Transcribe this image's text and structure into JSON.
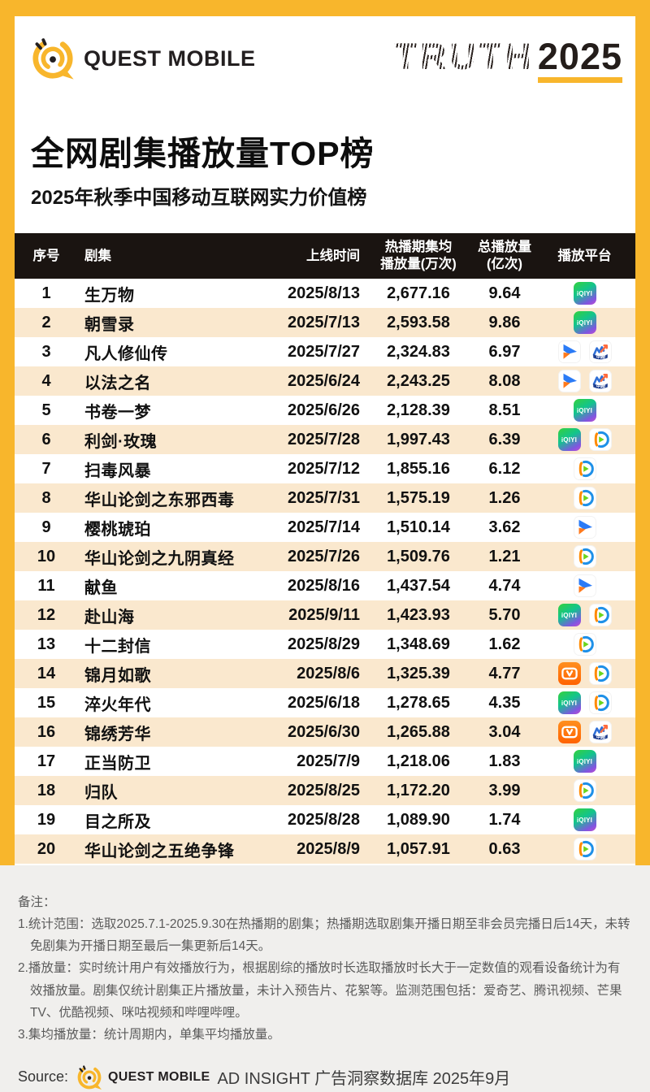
{
  "brand": {
    "name": "QUEST MOBILE"
  },
  "badge": {
    "word": "TRUTH",
    "year": "2025"
  },
  "title": "全网剧集播放量TOP榜",
  "subtitle": "2025年秋季中国移动互联网实力价值榜",
  "table_header": {
    "rank": "序号",
    "series": "剧集",
    "date": "上线时间",
    "avg_line1": "热播期集均",
    "avg_line2": "播放量(万次)",
    "total_line1": "总播放量",
    "total_line2": "(亿次)",
    "platform": "播放平台"
  },
  "icon_texts": {
    "iqiyi": "iQIYI",
    "migu_ribbon": "中超"
  },
  "platform_names": {
    "iqiyi": "爱奇艺",
    "tencent": "腾讯视频",
    "youku": "优酷视频",
    "mgtv": "芒果TV",
    "migu": "咪咕视频"
  },
  "chart_data": {
    "type": "table",
    "title": "全网剧集播放量TOP榜",
    "subtitle": "2025年秋季中国移动互联网实力价值榜",
    "columns": [
      "序号",
      "剧集",
      "上线时间",
      "热播期集均播放量(万次)",
      "总播放量(亿次)",
      "播放平台"
    ],
    "rows": [
      {
        "rank": "1",
        "title": "生万物",
        "date": "2025/8/13",
        "avg": "2,677.16",
        "total": "9.64",
        "platforms": [
          "iqiyi"
        ]
      },
      {
        "rank": "2",
        "title": "朝雪录",
        "date": "2025/7/13",
        "avg": "2,593.58",
        "total": "9.86",
        "platforms": [
          "iqiyi"
        ]
      },
      {
        "rank": "3",
        "title": "凡人修仙传",
        "date": "2025/7/27",
        "avg": "2,324.83",
        "total": "6.97",
        "platforms": [
          "youku",
          "migu"
        ]
      },
      {
        "rank": "4",
        "title": "以法之名",
        "date": "2025/6/24",
        "avg": "2,243.25",
        "total": "8.08",
        "platforms": [
          "youku",
          "migu"
        ]
      },
      {
        "rank": "5",
        "title": "书卷一梦",
        "date": "2025/6/26",
        "avg": "2,128.39",
        "total": "8.51",
        "platforms": [
          "iqiyi"
        ]
      },
      {
        "rank": "6",
        "title": "利剑·玫瑰",
        "date": "2025/7/28",
        "avg": "1,997.43",
        "total": "6.39",
        "platforms": [
          "iqiyi",
          "tencent"
        ]
      },
      {
        "rank": "7",
        "title": "扫毒风暴",
        "date": "2025/7/12",
        "avg": "1,855.16",
        "total": "6.12",
        "platforms": [
          "tencent"
        ]
      },
      {
        "rank": "8",
        "title": "华山论剑之东邪西毒",
        "date": "2025/7/31",
        "avg": "1,575.19",
        "total": "1.26",
        "platforms": [
          "tencent"
        ]
      },
      {
        "rank": "9",
        "title": "樱桃琥珀",
        "date": "2025/7/14",
        "avg": "1,510.14",
        "total": "3.62",
        "platforms": [
          "youku"
        ]
      },
      {
        "rank": "10",
        "title": "华山论剑之九阴真经",
        "date": "2025/7/26",
        "avg": "1,509.76",
        "total": "1.21",
        "platforms": [
          "tencent"
        ]
      },
      {
        "rank": "11",
        "title": "献鱼",
        "date": "2025/8/16",
        "avg": "1,437.54",
        "total": "4.74",
        "platforms": [
          "youku"
        ]
      },
      {
        "rank": "12",
        "title": "赴山海",
        "date": "2025/9/11",
        "avg": "1,423.93",
        "total": "5.70",
        "platforms": [
          "iqiyi",
          "tencent"
        ]
      },
      {
        "rank": "13",
        "title": "十二封信",
        "date": "2025/8/29",
        "avg": "1,348.69",
        "total": "1.62",
        "platforms": [
          "tencent"
        ]
      },
      {
        "rank": "14",
        "title": "锦月如歌",
        "date": "2025/8/6",
        "avg": "1,325.39",
        "total": "4.77",
        "platforms": [
          "mgtv",
          "tencent"
        ]
      },
      {
        "rank": "15",
        "title": "淬火年代",
        "date": "2025/6/18",
        "avg": "1,278.65",
        "total": "4.35",
        "platforms": [
          "iqiyi",
          "tencent"
        ]
      },
      {
        "rank": "16",
        "title": "锦绣芳华",
        "date": "2025/6/30",
        "avg": "1,265.88",
        "total": "3.04",
        "platforms": [
          "mgtv",
          "migu"
        ]
      },
      {
        "rank": "17",
        "title": "正当防卫",
        "date": "2025/7/9",
        "avg": "1,218.06",
        "total": "1.83",
        "platforms": [
          "iqiyi"
        ]
      },
      {
        "rank": "18",
        "title": "归队",
        "date": "2025/8/25",
        "avg": "1,172.20",
        "total": "3.99",
        "platforms": [
          "tencent"
        ]
      },
      {
        "rank": "19",
        "title": "目之所及",
        "date": "2025/8/28",
        "avg": "1,089.90",
        "total": "1.74",
        "platforms": [
          "iqiyi"
        ]
      },
      {
        "rank": "20",
        "title": "华山论剑之五绝争锋",
        "date": "2025/8/9",
        "avg": "1,057.91",
        "total": "0.63",
        "platforms": [
          "tencent"
        ]
      }
    ]
  },
  "notes": {
    "label": "备注：",
    "items": [
      "1.统计范围：选取2025.7.1-2025.9.30在热播期的剧集；热播期选取剧集开播日期至非会员完播日后14天，未转免剧集为开播日期至最后一集更新后14天。",
      "2.播放量：实时统计用户有效播放行为，根据剧综的播放时长选取播放时长大于一定数值的观看设备统计为有效播放量。剧集仅统计剧集正片播放量，未计入预告片、花絮等。监测范围包括：爱奇艺、腾讯视频、芒果TV、优酷视频、咪咕视频和哔哩哔哩。",
      "3.集均播放量：统计周期内，单集平均播放量。"
    ]
  },
  "source": {
    "label": "Source:",
    "brand": "QUEST MOBILE",
    "text": "AD INSIGHT 广告洞察数据库 2025年9月"
  },
  "colors": {
    "accent_yellow": "#F8B62C",
    "table_header_bg": "#1A1411",
    "row_alt_bg": "#FAE8CE",
    "footer_bg": "#F0EFED"
  }
}
